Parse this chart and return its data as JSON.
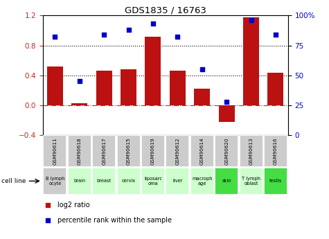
{
  "title": "GDS1835 / 16763",
  "samples": [
    "GSM90611",
    "GSM90618",
    "GSM90617",
    "GSM90615",
    "GSM90619",
    "GSM90612",
    "GSM90614",
    "GSM90620",
    "GSM90613",
    "GSM90616"
  ],
  "cell_lines": [
    "B lymph\nocyte",
    "brain",
    "breast",
    "cervix",
    "liposarc\noma",
    "liver",
    "macroph\nage",
    "skin",
    "T lymph\noblast",
    "testis"
  ],
  "cell_line_colors": [
    "#cccccc",
    "#ccffcc",
    "#ccffcc",
    "#ccffcc",
    "#ccffcc",
    "#ccffcc",
    "#ccffcc",
    "#44dd44",
    "#ccffcc",
    "#44dd44"
  ],
  "log2_ratio": [
    0.52,
    0.03,
    0.46,
    0.48,
    0.92,
    0.46,
    0.22,
    -0.22,
    1.18,
    0.43
  ],
  "percentile_rank": [
    82,
    45,
    84,
    88,
    93,
    82,
    55,
    28,
    96,
    84
  ],
  "bar_color": "#bb1111",
  "dot_color": "#0000cc",
  "ylim_left": [
    -0.4,
    1.2
  ],
  "ylim_right": [
    0,
    100
  ],
  "yticks_left": [
    -0.4,
    0.0,
    0.4,
    0.8,
    1.2
  ],
  "yticks_right": [
    0,
    25,
    50,
    75,
    100
  ],
  "ytick_labels_right": [
    "0",
    "25",
    "50",
    "75",
    "100%"
  ],
  "hline_zero": 0.0,
  "hline_dotted1": 0.4,
  "hline_dotted2": 0.8,
  "legend_log2": "log2 ratio",
  "legend_pct": "percentile rank within the sample",
  "cell_line_label": "cell line"
}
